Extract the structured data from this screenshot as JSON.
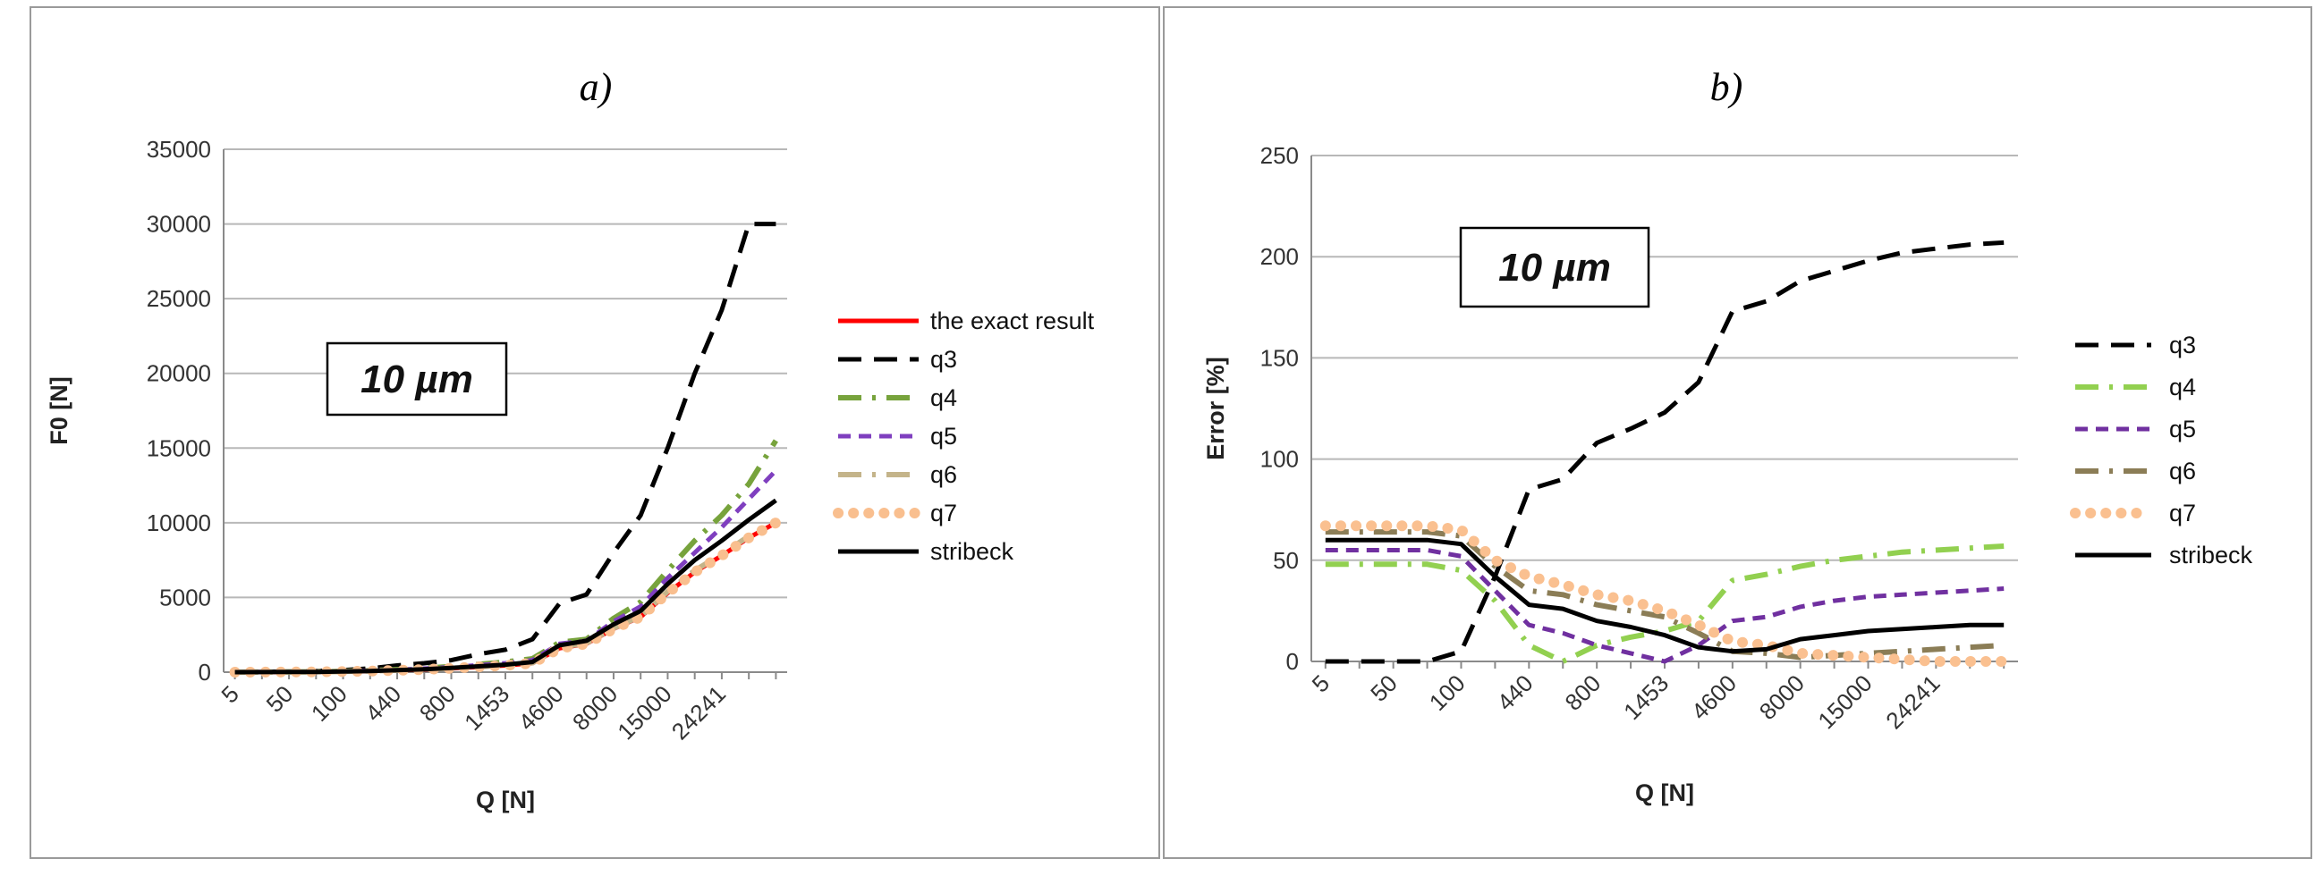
{
  "chart_data": [
    {
      "type": "line",
      "panel_title": "a)",
      "xlabel": "Q [N]",
      "ylabel": "F0 [N]",
      "ylim": [
        0,
        35000
      ],
      "yticks": [
        0,
        5000,
        10000,
        15000,
        20000,
        25000,
        30000,
        35000
      ],
      "categories": [
        "5",
        "",
        "50",
        "",
        "100",
        "",
        "440",
        "",
        "800",
        "",
        "1453",
        "",
        "4600",
        "",
        "8000",
        "",
        "15000",
        "",
        "24241",
        "",
        ""
      ],
      "grid": true,
      "legend_position": "right",
      "annotation": "10 µm",
      "series": [
        {
          "name": "the exact result",
          "color": "#ff0000",
          "style": "solid",
          "values": [
            0,
            5,
            10,
            20,
            40,
            70,
            120,
            180,
            260,
            350,
            450,
            600,
            1600,
            1900,
            2900,
            3700,
            5300,
            6700,
            7800,
            9000,
            10000
          ]
        },
        {
          "name": "q3",
          "color": "#000000",
          "style": "dash",
          "values": [
            10,
            20,
            40,
            70,
            130,
            250,
            450,
            600,
            800,
            1200,
            1500,
            2200,
            4600,
            5200,
            8000,
            10500,
            15000,
            20000,
            24241,
            30000,
            30000
          ]
        },
        {
          "name": "q4",
          "color": "#77a33c",
          "style": "dashdot",
          "values": [
            0,
            5,
            15,
            30,
            60,
            110,
            180,
            260,
            380,
            520,
            680,
            900,
            2000,
            2200,
            3600,
            4700,
            6800,
            8800,
            10500,
            12600,
            15500
          ]
        },
        {
          "name": "q5",
          "color": "#7f3fbf",
          "style": "shortdash",
          "values": [
            0,
            5,
            15,
            25,
            55,
            100,
            160,
            240,
            340,
            460,
            600,
            800,
            1900,
            2100,
            3400,
            4400,
            6300,
            8000,
            9700,
            11600,
            13500
          ]
        },
        {
          "name": "q6",
          "color": "#c4b48a",
          "style": "dashdot",
          "values": [
            0,
            5,
            10,
            20,
            40,
            75,
            125,
            185,
            270,
            360,
            470,
            630,
            1650,
            1950,
            2950,
            3750,
            5400,
            6800,
            7900,
            9100,
            10100
          ]
        },
        {
          "name": "q7",
          "color": "#f9bf8f",
          "style": "dot",
          "values": [
            0,
            5,
            10,
            20,
            40,
            70,
            120,
            180,
            260,
            350,
            450,
            600,
            1600,
            1900,
            2900,
            3700,
            5300,
            6700,
            7800,
            9000,
            10000
          ]
        },
        {
          "name": "stribeck",
          "color": "#000000",
          "style": "solid",
          "values": [
            0,
            5,
            10,
            20,
            45,
            80,
            130,
            200,
            290,
            390,
            500,
            680,
            1800,
            2100,
            3200,
            4100,
            5900,
            7500,
            8800,
            10200,
            11500
          ]
        }
      ]
    },
    {
      "type": "line",
      "panel_title": "b)",
      "xlabel": "Q [N]",
      "ylabel": "Error [%]",
      "ylim": [
        0,
        250
      ],
      "yticks": [
        0,
        50,
        100,
        150,
        200,
        250
      ],
      "categories": [
        "5",
        "",
        "50",
        "",
        "100",
        "",
        "440",
        "",
        "800",
        "",
        "1453",
        "",
        "4600",
        "",
        "8000",
        "",
        "15000",
        "",
        "24241",
        "",
        ""
      ],
      "grid": true,
      "legend_position": "right",
      "annotation": "10 µm",
      "series": [
        {
          "name": "q3",
          "color": "#000000",
          "style": "dash",
          "values": [
            0,
            0,
            0,
            0,
            5,
            42,
            85,
            90,
            108,
            115,
            123,
            138,
            173,
            178,
            188,
            193,
            198,
            202,
            204,
            206,
            207
          ]
        },
        {
          "name": "q4",
          "color": "#92d050",
          "style": "dashdot",
          "values": [
            48,
            48,
            48,
            48,
            45,
            30,
            8,
            0,
            8,
            12,
            15,
            20,
            40,
            43,
            47,
            50,
            52,
            54,
            55,
            56,
            57
          ]
        },
        {
          "name": "q5",
          "color": "#7030a0",
          "style": "shortdash",
          "values": [
            55,
            55,
            55,
            55,
            52,
            35,
            18,
            14,
            8,
            4,
            0,
            8,
            20,
            22,
            27,
            30,
            32,
            33,
            34,
            35,
            36
          ]
        },
        {
          "name": "q6",
          "color": "#8b7d56",
          "style": "dashdot",
          "values": [
            64,
            64,
            64,
            64,
            62,
            47,
            35,
            33,
            28,
            25,
            22,
            14,
            5,
            4,
            2,
            3,
            4,
            5,
            6,
            7,
            8
          ]
        },
        {
          "name": "q7",
          "color": "#fac090",
          "style": "dot",
          "values": [
            67,
            67,
            67,
            67,
            65,
            50,
            42,
            38,
            33,
            30,
            25,
            18,
            10,
            8,
            4,
            3,
            2,
            1,
            0,
            0,
            0
          ]
        },
        {
          "name": "stribeck",
          "color": "#000000",
          "style": "solid",
          "values": [
            60,
            60,
            60,
            60,
            58,
            42,
            28,
            26,
            20,
            17,
            13,
            7,
            5,
            6,
            11,
            13,
            15,
            16,
            17,
            18,
            18
          ]
        }
      ]
    }
  ]
}
